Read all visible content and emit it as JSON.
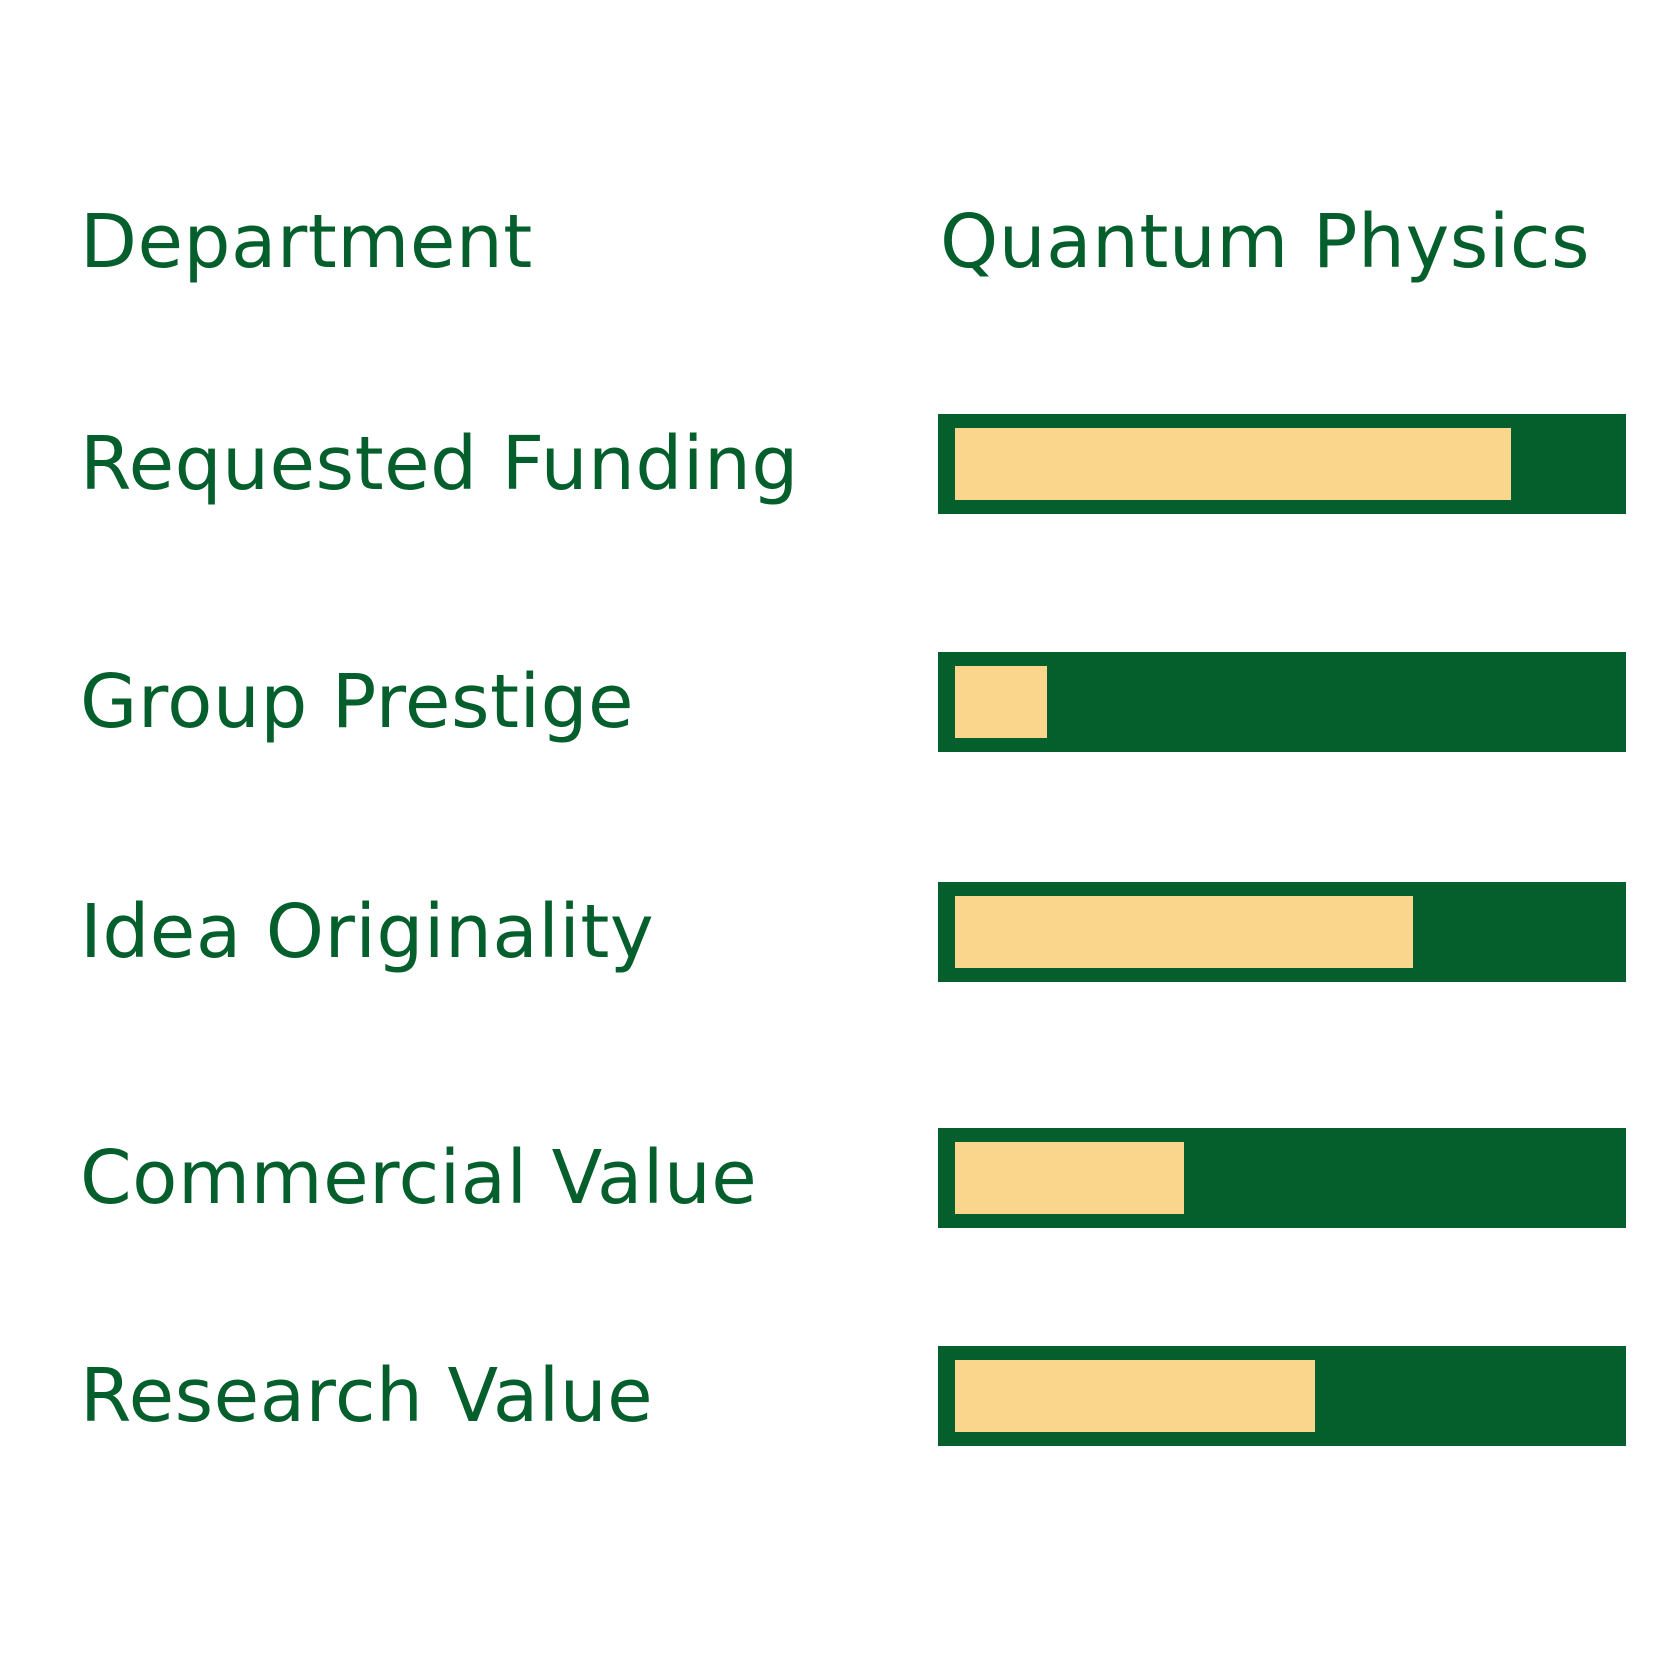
{
  "header": {
    "label": "Department",
    "value": "Quantum Physics"
  },
  "colors": {
    "text": "#055F2C",
    "track": "#055F2C",
    "fill": "#FAD68D",
    "background": "#ffffff"
  },
  "metrics": [
    {
      "label": "Requested Funding",
      "level": 0.85
    },
    {
      "label": "Group Prestige",
      "level": 0.14
    },
    {
      "label": "Idea Originality",
      "level": 0.7
    },
    {
      "label": "Commercial Value",
      "level": 0.35
    },
    {
      "label": "Research Value",
      "level": 0.55
    }
  ]
}
